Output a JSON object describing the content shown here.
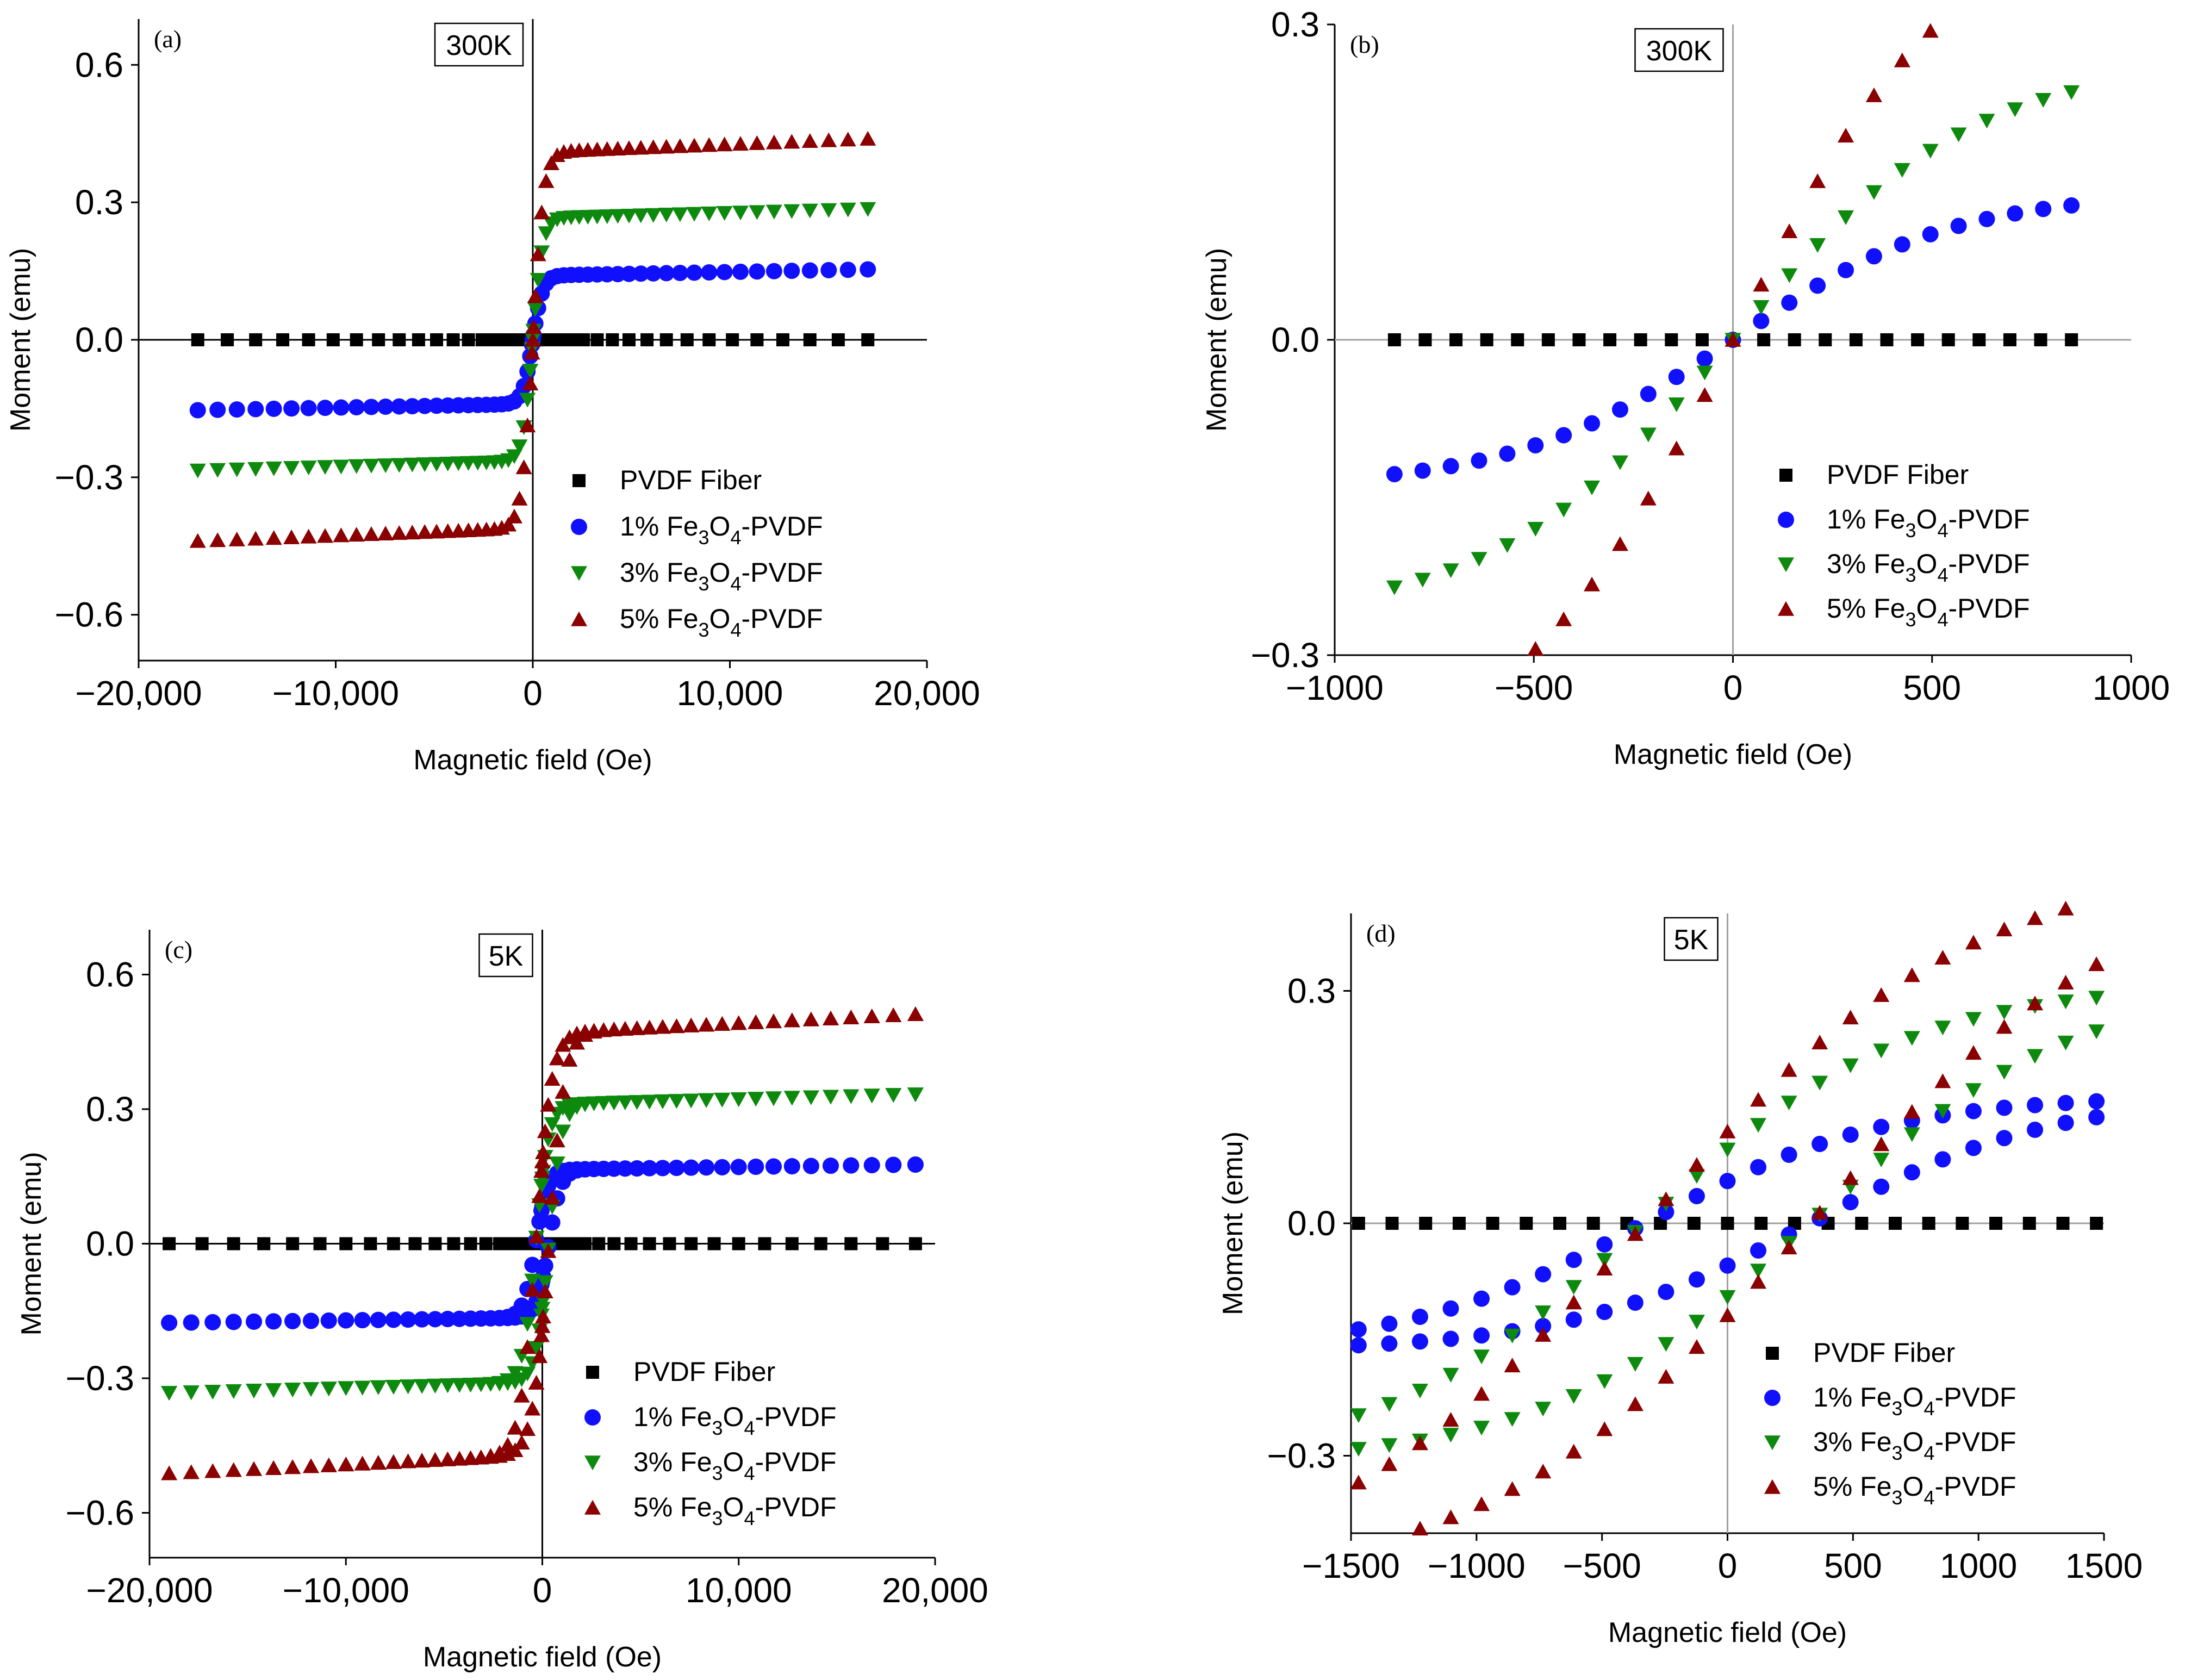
{
  "figure": {
    "colors": {
      "PVDF Fiber": "#000000",
      "1% Fe3O4-PVDF": "#1010ff",
      "3% Fe3O4-PVDF": "#0d8a0d",
      "5% Fe3O4-PVDF": "#8b0000",
      "axis": "#000000",
      "zero_line_a": "#000000",
      "zero_line_b": "#a0a0a0"
    },
    "legend_entries": [
      {
        "text": "PVDF Fiber",
        "marker": "square-icon"
      },
      {
        "prefix": "1% Fe",
        "sub1": "3",
        "mid": "O",
        "sub2": "4",
        "suffix": "-PVDF",
        "marker": "circle-icon"
      },
      {
        "prefix": "3% Fe",
        "sub1": "3",
        "mid": "O",
        "sub2": "4",
        "suffix": "-PVDF",
        "marker": "triangle-down-icon"
      },
      {
        "prefix": "5% Fe",
        "sub1": "3",
        "mid": "O",
        "sub2": "4",
        "suffix": "-PVDF",
        "marker": "triangle-up-icon"
      }
    ]
  },
  "chart_data": [
    {
      "panel": "(a)",
      "temperature": "300K",
      "type": "scatter",
      "xlabel": "Magnetic field (Oe)",
      "ylabel": "Moment (emu)",
      "xlim": [
        -20000,
        20000
      ],
      "ylim": [
        -0.7,
        0.7
      ],
      "xticks": [
        -20000,
        -10000,
        0,
        10000,
        20000
      ],
      "xtick_labels": [
        "−20,000",
        "−10,000",
        "0",
        "10,000",
        "20,000"
      ],
      "yticks": [
        -0.6,
        -0.3,
        0.0,
        0.3,
        0.6
      ],
      "ytick_labels": [
        "−0.6",
        "−0.3",
        "0.0",
        "0.3",
        "0.6"
      ],
      "legend_position": "bottom-right",
      "series_model": {
        "field_range": [
          -17000,
          17000
        ],
        "hysteresis": false
      },
      "series": [
        {
          "name": "PVDF Fiber",
          "ms": 0.0,
          "k": 500,
          "hc": 0,
          "chi": 0
        },
        {
          "name": "1% Fe3O4-PVDF",
          "ms": 0.14,
          "k": 500,
          "hc": 0,
          "chi": 8e-07
        },
        {
          "name": "3% Fe3O4-PVDF",
          "ms": 0.265,
          "k": 500,
          "hc": 0,
          "chi": 1.2e-06
        },
        {
          "name": "5% Fe3O4-PVDF",
          "ms": 0.41,
          "k": 550,
          "hc": 0,
          "chi": 1.7e-06
        }
      ]
    },
    {
      "panel": "(b)",
      "temperature": "300K",
      "type": "scatter",
      "xlabel": "Magnetic field (Oe)",
      "ylabel": "Moment (emu)",
      "xlim": [
        -1000,
        1000
      ],
      "ylim": [
        -0.3,
        0.3
      ],
      "xticks": [
        -1000,
        -500,
        0,
        500,
        1000
      ],
      "xtick_labels": [
        "−1000",
        "−500",
        "0",
        "500",
        "1000"
      ],
      "yticks": [
        -0.3,
        0.0,
        0.3
      ],
      "ytick_labels": [
        "−0.3",
        "0.0",
        "0.3"
      ],
      "legend_position": "right",
      "series_model": {
        "field_range": [
          -850,
          850
        ],
        "hysteresis": false
      },
      "series": [
        {
          "name": "PVDF Fiber",
          "ms": 0.0,
          "k": 500,
          "hc": 0,
          "chi": 0
        },
        {
          "name": "1% Fe3O4-PVDF",
          "ms": 0.14,
          "k": 550,
          "hc": 0,
          "chi": 0
        },
        {
          "name": "3% Fe3O4-PVDF",
          "ms": 0.265,
          "k": 600,
          "hc": 0,
          "chi": 0
        },
        {
          "name": "5% Fe3O4-PVDF",
          "ms": 0.41,
          "k": 550,
          "hc": 0,
          "chi": 0
        }
      ]
    },
    {
      "panel": "(c)",
      "temperature": "5K",
      "type": "scatter",
      "xlabel": "Magnetic field (Oe)",
      "ylabel": "Moment (emu)",
      "xlim": [
        -20000,
        20000
      ],
      "ylim": [
        -0.7,
        0.7
      ],
      "xticks": [
        -20000,
        -10000,
        0,
        10000,
        20000
      ],
      "xtick_labels": [
        "−20,000",
        "−10,000",
        "0",
        "10,000",
        "20,000"
      ],
      "yticks": [
        -0.6,
        -0.3,
        0.0,
        0.3,
        0.6
      ],
      "ytick_labels": [
        "−0.6",
        "−0.3",
        "0.0",
        "0.3",
        "0.6"
      ],
      "legend_position": "bottom-right",
      "series_model": {
        "field_range": [
          -19000,
          19000
        ],
        "hysteresis": true
      },
      "series": [
        {
          "name": "PVDF Fiber",
          "ms": 0.0,
          "k": 600,
          "hc": 0,
          "chi": 0
        },
        {
          "name": "1% Fe3O4-PVDF",
          "ms": 0.165,
          "k": 600,
          "hc": 330,
          "chi": 6e-07
        },
        {
          "name": "3% Fe3O4-PVDF",
          "ms": 0.31,
          "k": 650,
          "hc": 330,
          "chi": 1.2e-06
        },
        {
          "name": "5% Fe3O4-PVDF",
          "ms": 0.47,
          "k": 800,
          "hc": 330,
          "chi": 2.2e-06
        }
      ]
    },
    {
      "panel": "(d)",
      "temperature": "5K",
      "type": "scatter",
      "xlabel": "Magnetic field (Oe)",
      "ylabel": "Moment (emu)",
      "xlim": [
        -1500,
        1500
      ],
      "ylim": [
        -0.4,
        0.4
      ],
      "xticks": [
        -1500,
        -1000,
        -500,
        0,
        500,
        1000,
        1500
      ],
      "xtick_labels": [
        "−1500",
        "−1000",
        "−500",
        "0",
        "500",
        "1000",
        "1500"
      ],
      "yticks": [
        -0.3,
        0.0,
        0.3
      ],
      "ytick_labels": [
        "−0.3",
        "0.0",
        "0.3"
      ],
      "legend_position": "bottom-right",
      "series_model": {
        "field_range": [
          -1470,
          1470
        ],
        "hysteresis": true
      },
      "series": [
        {
          "name": "PVDF Fiber",
          "ms": 0.0,
          "k": 600,
          "hc": 0,
          "chi": 0
        },
        {
          "name": "1% Fe3O4-PVDF",
          "ms": 0.165,
          "k": 600,
          "hc": 330,
          "chi": 0
        },
        {
          "name": "3% Fe3O4-PVDF",
          "ms": 0.31,
          "k": 650,
          "hc": 330,
          "chi": 0
        },
        {
          "name": "5% Fe3O4-PVDF",
          "ms": 0.47,
          "k": 800,
          "hc": 330,
          "chi": 0
        }
      ]
    }
  ]
}
